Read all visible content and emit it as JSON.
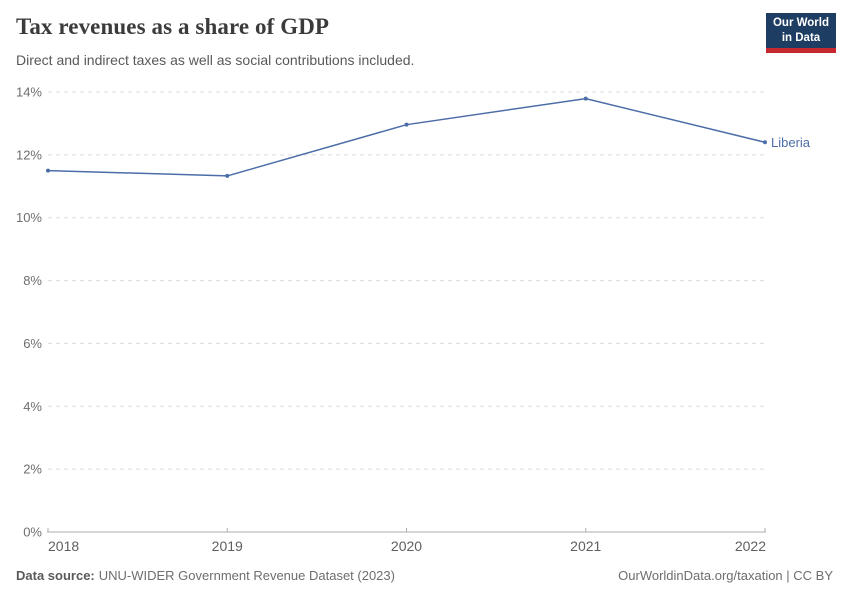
{
  "header": {
    "title": "Tax revenues as a share of GDP",
    "subtitle": "Direct and indirect taxes as well as social contributions included.",
    "logo": {
      "line1": "Our World",
      "line2": "in Data",
      "bg_color": "#1d3d63",
      "bar_color": "#c5292f"
    }
  },
  "chart_data": {
    "type": "line",
    "title": "Tax revenues as a share of GDP",
    "subtitle": "Direct and indirect taxes as well as social contributions included.",
    "x": [
      2018,
      2019,
      2020,
      2021,
      2022
    ],
    "series": [
      {
        "name": "Liberia",
        "color": "#4c6da8",
        "values": [
          11.5,
          11.33,
          12.96,
          13.79,
          12.4
        ]
      }
    ],
    "ylim": [
      0,
      14
    ],
    "yticks": [
      0,
      2,
      4,
      6,
      8,
      10,
      12,
      14
    ],
    "ytick_suffix": "%",
    "xlabel": "",
    "ylabel": "",
    "grid": "horizontal-dashed",
    "legend_position": "line-end-label"
  },
  "footer": {
    "source_label": "Data source:",
    "source_text": "UNU-WIDER Government Revenue Dataset (2023)",
    "right_text": "OurWorldinData.org/taxation | CC BY"
  }
}
